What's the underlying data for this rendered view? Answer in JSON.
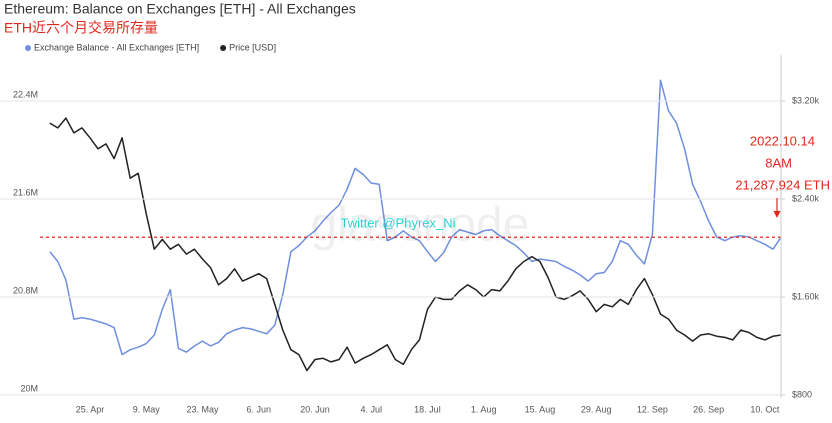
{
  "chart_data": {
    "type": "line",
    "title": "Ethereum: Balance on Exchanges [ETH] - All Exchanges",
    "subtitle": "ETH近六个月交易所存量",
    "watermark": "glassnode",
    "credit": "Twitter @Phyrex_Ni",
    "annotations": [
      "2022.10.14",
      "8AM",
      "21,287,924 ETH"
    ],
    "categories": [
      null,
      null,
      null,
      null,
      null,
      "25. Apr",
      null,
      null,
      null,
      null,
      null,
      null,
      "9. May",
      null,
      null,
      null,
      null,
      null,
      null,
      "23. May",
      null,
      null,
      null,
      null,
      null,
      null,
      "6. Jun",
      null,
      null,
      null,
      null,
      null,
      null,
      "20. Jun",
      null,
      null,
      null,
      null,
      null,
      null,
      "4. Jul",
      null,
      null,
      null,
      null,
      null,
      null,
      "18. Jul",
      null,
      null,
      null,
      null,
      null,
      null,
      "1. Aug",
      null,
      null,
      null,
      null,
      null,
      null,
      "15. Aug",
      null,
      null,
      null,
      null,
      null,
      null,
      "29. Aug",
      null,
      null,
      null,
      null,
      null,
      null,
      "12. Sep",
      null,
      null,
      null,
      null,
      null,
      null,
      "26. Sep",
      null,
      null,
      null,
      null,
      null,
      null,
      "10. Oct",
      null,
      null
    ],
    "series": [
      {
        "name": "Exchange Balance - All Exchanges [ETH]",
        "color": "#6f8fdf",
        "axis": "y",
        "values": [
          21170000,
          21090000,
          20940000,
          20620000,
          20630000,
          20620000,
          20600000,
          20580000,
          20550000,
          20330000,
          20370000,
          20390000,
          20420000,
          20490000,
          20700000,
          20860000,
          20380000,
          20350000,
          20400000,
          20440000,
          20400000,
          20430000,
          20500000,
          20530000,
          20550000,
          20540000,
          20520000,
          20500000,
          20570000,
          20820000,
          21170000,
          21220000,
          21290000,
          21340000,
          21420000,
          21490000,
          21550000,
          21680000,
          21850000,
          21800000,
          21730000,
          21720000,
          21260000,
          21290000,
          21340000,
          21290000,
          21260000,
          21170000,
          21090000,
          21160000,
          21290000,
          21350000,
          21330000,
          21310000,
          21340000,
          21350000,
          21300000,
          21260000,
          21220000,
          21160000,
          21090000,
          21110000,
          21100000,
          21090000,
          21050000,
          21020000,
          20980000,
          20930000,
          20990000,
          21000000,
          21090000,
          21260000,
          21230000,
          21140000,
          21070000,
          21310000,
          22570000,
          22320000,
          22220000,
          22010000,
          21720000,
          21580000,
          21420000,
          21290000,
          21260000,
          21290000,
          21300000,
          21290000,
          21260000,
          21230000,
          21190000,
          21287924
        ]
      },
      {
        "name": "Price [USD]",
        "color": "#222222",
        "axis": "y2",
        "values": [
          3020,
          2980,
          3060,
          2940,
          2980,
          2900,
          2810,
          2850,
          2730,
          2900,
          2570,
          2610,
          2280,
          1990,
          2070,
          1990,
          2030,
          1950,
          1990,
          1910,
          1840,
          1700,
          1750,
          1830,
          1730,
          1760,
          1790,
          1750,
          1540,
          1330,
          1170,
          1130,
          1000,
          1090,
          1100,
          1070,
          1090,
          1190,
          1060,
          1100,
          1130,
          1170,
          1210,
          1090,
          1050,
          1170,
          1250,
          1500,
          1600,
          1580,
          1580,
          1650,
          1700,
          1660,
          1600,
          1660,
          1650,
          1730,
          1830,
          1890,
          1930,
          1890,
          1760,
          1600,
          1580,
          1610,
          1650,
          1580,
          1480,
          1540,
          1520,
          1580,
          1540,
          1660,
          1750,
          1620,
          1460,
          1420,
          1330,
          1290,
          1240,
          1290,
          1300,
          1280,
          1270,
          1250,
          1330,
          1310,
          1270,
          1250,
          1280,
          1290
        ]
      }
    ],
    "ylim": [
      20000000,
      22800000
    ],
    "yticks": [
      {
        "value": 20000000,
        "label": "20M"
      },
      {
        "value": 20800000,
        "label": "20.8M"
      },
      {
        "value": 21600000,
        "label": "21.6M"
      },
      {
        "value": 22400000,
        "label": "22.4M"
      }
    ],
    "y2lim": [
      800,
      3600
    ],
    "y2ticks": [
      {
        "value": 800,
        "label": "$800"
      },
      {
        "value": 1600,
        "label": "$1.60k"
      },
      {
        "value": 2400,
        "label": "$2.40k"
      },
      {
        "value": 3200,
        "label": "$3.20k"
      }
    ],
    "grid": true
  }
}
